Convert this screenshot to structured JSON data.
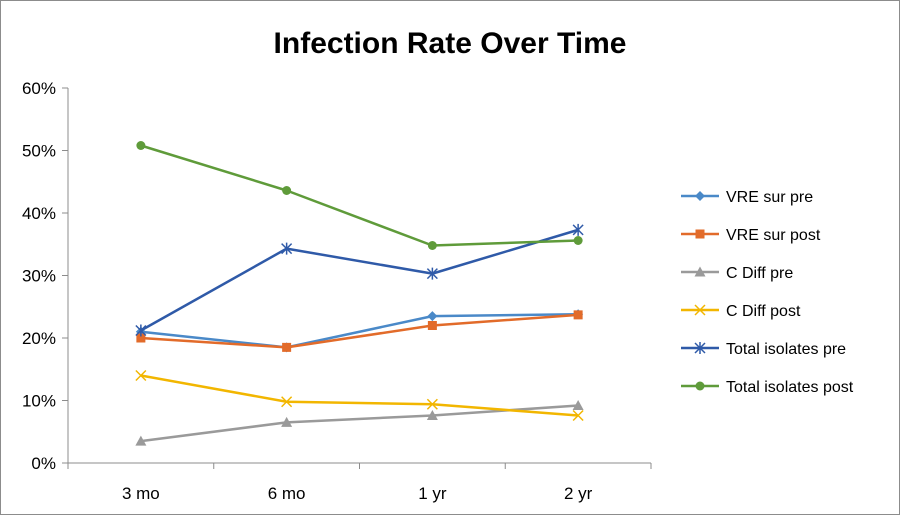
{
  "chart_data": {
    "type": "line",
    "title": "Infection Rate Over Time",
    "categories": [
      "3 mo",
      "6 mo",
      "1 yr",
      "2 yr"
    ],
    "ylim": [
      0,
      60
    ],
    "y_ticks": [
      0,
      10,
      20,
      30,
      40,
      50,
      60
    ],
    "y_tick_labels": [
      "0%",
      "10%",
      "20%",
      "30%",
      "40%",
      "50%",
      "60%"
    ],
    "grid": false,
    "legend_position": "right",
    "series": [
      {
        "name": "VRE sur pre",
        "color": "#4a89c8",
        "marker": "diamond",
        "values": [
          21.0,
          18.5,
          23.5,
          23.8
        ]
      },
      {
        "name": "VRE sur post",
        "color": "#e26b2a",
        "marker": "square",
        "values": [
          20.0,
          18.5,
          22.0,
          23.7
        ]
      },
      {
        "name": "C Diff pre",
        "color": "#9a9a9a",
        "marker": "triangle",
        "values": [
          3.5,
          6.5,
          7.6,
          9.2
        ]
      },
      {
        "name": "C Diff post",
        "color": "#f2b600",
        "marker": "x",
        "values": [
          14.0,
          9.8,
          9.4,
          7.6
        ]
      },
      {
        "name": "Total isolates pre",
        "color": "#2f5aa8",
        "marker": "asterisk",
        "values": [
          21.2,
          34.3,
          30.3,
          37.3
        ]
      },
      {
        "name": "Total isolates post",
        "color": "#5f9b3a",
        "marker": "circle",
        "values": [
          50.8,
          43.6,
          34.8,
          35.6
        ]
      }
    ]
  }
}
